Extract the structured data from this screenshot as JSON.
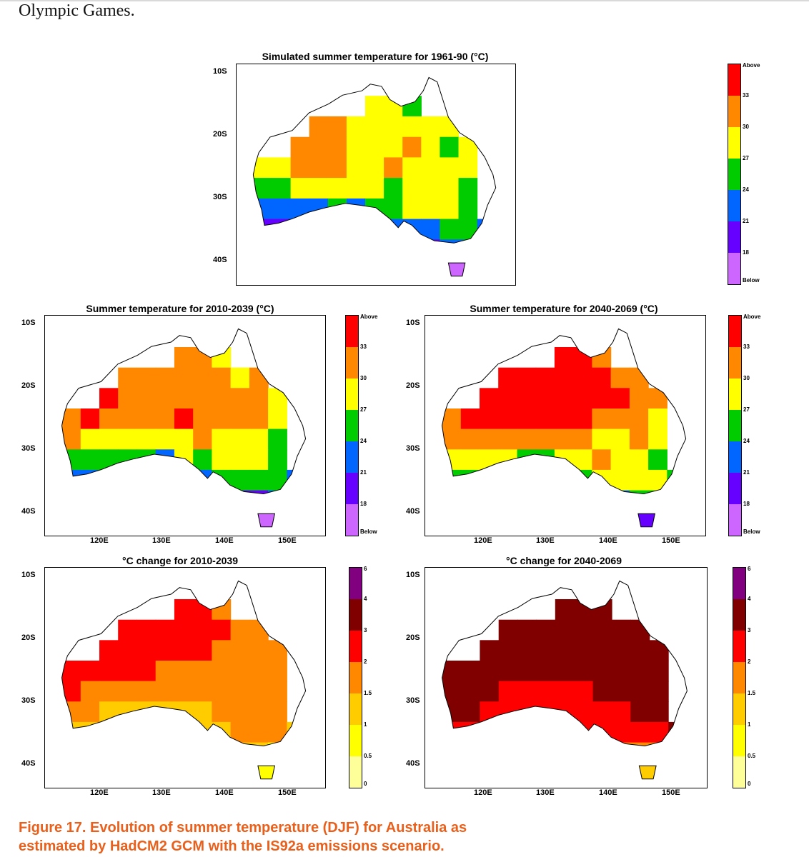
{
  "page": {
    "intro_text": "Olympic Games.",
    "caption_line1": "Figure 17. Evolution of summer temperature (DJF)  for Australia as",
    "caption_line2": "estimated by HadCM2 GCM with the IS92a emissions scenario."
  },
  "colors": {
    "temperature_scale": [
      "#cc66ff",
      "#6600ff",
      "#0066ff",
      "#00cc00",
      "#ffff00",
      "#ff8800",
      "#ff0000"
    ],
    "change_scale": [
      "#ffff99",
      "#ffff00",
      "#ffcc00",
      "#ff8800",
      "#ff0000",
      "#800000",
      "#800080"
    ],
    "coastline": "#000000"
  },
  "legends": {
    "temperature": [
      "Above",
      "33",
      "30",
      "27",
      "24",
      "21",
      "18",
      "Below"
    ],
    "change": [
      "6",
      "4",
      "3",
      "2",
      "1.5",
      "1",
      "0.5",
      "0"
    ]
  },
  "axes": {
    "lat_ticks": [
      "10S",
      "20S",
      "30S",
      "40S"
    ],
    "lon_ticks": [
      "120E",
      "130E",
      "140E",
      "150E"
    ]
  },
  "panels": [
    {
      "id": "baseline",
      "title": "Simulated summer temperature for 1961-90 (°C)",
      "scale": "temperature",
      "grid": [
        "...........",
        "......443..",
        "...55444444",
        "..5554445434",
        "445554454444",
        "334444434443",
        "222232334443",
        "1122221222332",
        "....21122122",
        "...........0"
      ]
    },
    {
      "id": "t2010",
      "title": "Summer temperature for 2010-2039 (°C)",
      "scale": "temperature",
      "grid": [
        "...........",
        "......554..",
        "...55555545",
        "..6555555554",
        "565555655554",
        "544444454443",
        "333332434443",
        "2222223233332",
        "....21122112",
        "...........0"
      ]
    },
    {
      "id": "t2040",
      "title": "Summer temperature for 2040-2069 (°C)",
      "scale": "temperature",
      "grid": [
        "...........",
        "......665..",
        "...66666655",
        "..6666666655",
        "566666665554",
        "555555554454",
        "444433445443",
        "3333334344443",
        "....33233233",
        "...........1"
      ]
    },
    {
      "id": "c2010",
      "title": "°C change for 2010-2039",
      "scale": "change",
      "grid": [
        "...........",
        "......443..",
        "...44444433",
        "..4444443333",
        "444443333333",
        "433333333333",
        "332222223333",
        "2222222223332",
        "....21122221",
        "...........1"
      ]
    },
    {
      "id": "c2040",
      "title": "°C change for 2040-2069",
      "scale": "change",
      "grid": [
        "...........",
        "......555..",
        "...55555555",
        "..5555555555",
        "555555555555",
        "555444445555",
        "554444444455",
        "4444444444445",
        "....33333333",
        "...........2"
      ]
    }
  ]
}
